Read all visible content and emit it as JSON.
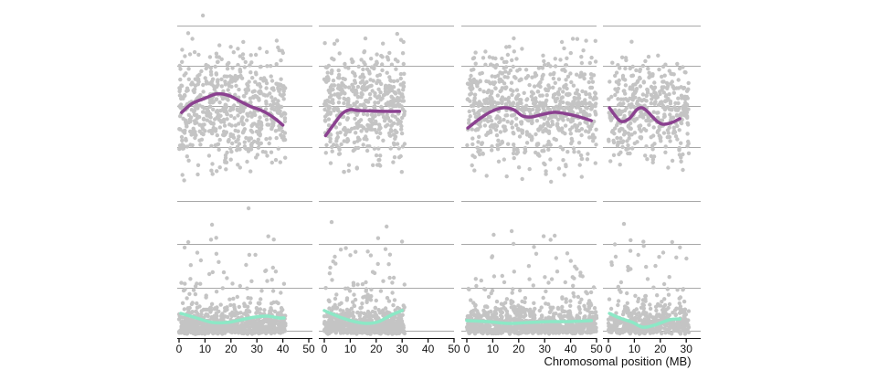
{
  "figure": {
    "background": "#ffffff"
  },
  "style": {
    "point_color": "#c4c4c4",
    "grid_color": "#a8a8a8",
    "axis_color": "#111111",
    "tick_label_color": "#111111",
    "axis_label_color": "#111111",
    "trend_color_top_row": "#8b4190",
    "trend_color_bottom_row": "#8ce8c6"
  },
  "chart_data": {
    "type": "scatter",
    "title": "",
    "xlabel": "Chromosomal position (MB)",
    "ylabel": "",
    "x_units": "MB",
    "y_axis_labels_visible": false,
    "y_units": "normalized panel fraction (0 = panel top, 1 = panel bottom); no y tick labels are visible in the image",
    "grid": "horizontal major gridlines only, 4 per panel row",
    "legend": "none",
    "facets": {
      "rows": 2,
      "cols": 4,
      "description": "2x4 grid of scatter panels; top row has purple loess trend, bottom row has mint-green loess trend; gray points"
    },
    "x_ticks_per_column": [
      [
        0,
        10,
        20,
        30,
        40,
        50
      ],
      [
        0,
        10,
        20,
        30,
        40,
        50
      ],
      [
        0,
        10,
        20,
        30,
        40,
        50
      ],
      [
        0,
        10,
        20,
        30
      ]
    ],
    "x_axis_range_per_column": [
      [
        0,
        52
      ],
      [
        0,
        52
      ],
      [
        0,
        52
      ],
      [
        0,
        36
      ]
    ],
    "panels": [
      {
        "row": 0,
        "col": 0,
        "x_data_max_mb": 41,
        "n_points": 620,
        "y_dist": {
          "kind": "normal",
          "mean": 0.55,
          "sd": 0.16,
          "min": 0.13,
          "max": 0.97
        },
        "trend": [
          [
            1,
            0.58
          ],
          [
            5,
            0.53
          ],
          [
            10,
            0.5
          ],
          [
            14,
            0.477
          ],
          [
            17,
            0.477
          ],
          [
            20,
            0.49
          ],
          [
            23,
            0.513
          ],
          [
            25,
            0.528
          ],
          [
            28,
            0.549
          ],
          [
            31,
            0.564
          ],
          [
            34,
            0.585
          ],
          [
            37,
            0.615
          ],
          [
            40,
            0.651
          ]
        ],
        "outliers": [
          [
            9.2,
            0.036
          ]
        ]
      },
      {
        "row": 0,
        "col": 1,
        "x_data_max_mb": 31,
        "n_points": 500,
        "y_dist": {
          "kind": "normal",
          "mean": 0.55,
          "sd": 0.16,
          "min": 0.13,
          "max": 0.97
        },
        "trend": [
          [
            0.5,
            0.71
          ],
          [
            4,
            0.64
          ],
          [
            7,
            0.585
          ],
          [
            10,
            0.564
          ],
          [
            13,
            0.569
          ],
          [
            18,
            0.572
          ],
          [
            24,
            0.574
          ],
          [
            29,
            0.574
          ]
        ],
        "outliers": []
      },
      {
        "row": 0,
        "col": 2,
        "x_data_max_mb": 50,
        "n_points": 720,
        "y_dist": {
          "kind": "normal",
          "mean": 0.55,
          "sd": 0.16,
          "min": 0.13,
          "max": 0.97
        },
        "trend": [
          [
            0.4,
            0.667
          ],
          [
            5,
            0.615
          ],
          [
            9.5,
            0.574
          ],
          [
            14,
            0.554
          ],
          [
            18,
            0.564
          ],
          [
            21.5,
            0.6
          ],
          [
            25,
            0.605
          ],
          [
            29.5,
            0.59
          ],
          [
            34,
            0.579
          ],
          [
            39,
            0.59
          ],
          [
            43.5,
            0.605
          ],
          [
            48,
            0.626
          ]
        ],
        "outliers": []
      },
      {
        "row": 0,
        "col": 3,
        "x_data_max_mb": 31,
        "n_points": 430,
        "y_dist": {
          "kind": "normal",
          "mean": 0.57,
          "sd": 0.14,
          "min": 0.16,
          "max": 0.97
        },
        "trend": [
          [
            0.4,
            0.554
          ],
          [
            3,
            0.605
          ],
          [
            5,
            0.631
          ],
          [
            8,
            0.615
          ],
          [
            11,
            0.564
          ],
          [
            13,
            0.554
          ],
          [
            15,
            0.574
          ],
          [
            18.5,
            0.626
          ],
          [
            21,
            0.646
          ],
          [
            24.5,
            0.636
          ],
          [
            27.5,
            0.615
          ]
        ],
        "outliers": []
      },
      {
        "row": 1,
        "col": 0,
        "x_data_max_mb": 41,
        "n_points": 780,
        "y_dist": {
          "kind": "baseline-skew",
          "baseline": 0.962,
          "sd1": 0.085,
          "sd2": 0.23,
          "p1": 0.84,
          "p2": 0.14,
          "far_min": 0.25,
          "far_max": 0.7,
          "min": 0.06
        },
        "trend": [
          [
            0.7,
            0.826
          ],
          [
            6.7,
            0.858
          ],
          [
            12.7,
            0.89
          ],
          [
            18.7,
            0.89
          ],
          [
            24,
            0.871
          ],
          [
            29,
            0.852
          ],
          [
            34,
            0.845
          ],
          [
            38.4,
            0.858
          ],
          [
            40.5,
            0.858
          ]
        ],
        "outliers": [
          [
            26.8,
            0.084
          ],
          [
            12.7,
            0.2
          ]
        ]
      },
      {
        "row": 1,
        "col": 1,
        "x_data_max_mb": 31,
        "n_points": 620,
        "y_dist": {
          "kind": "baseline-skew",
          "baseline": 0.962,
          "sd1": 0.085,
          "sd2": 0.23,
          "p1": 0.84,
          "p2": 0.14,
          "far_min": 0.25,
          "far_max": 0.7,
          "min": 0.06
        },
        "trend": [
          [
            0,
            0.806
          ],
          [
            6,
            0.852
          ],
          [
            11.6,
            0.884
          ],
          [
            16.5,
            0.897
          ],
          [
            21,
            0.884
          ],
          [
            25.7,
            0.839
          ],
          [
            30,
            0.806
          ]
        ],
        "outliers": [
          [
            2.8,
            0.181
          ],
          [
            24,
            0.213
          ]
        ]
      },
      {
        "row": 1,
        "col": 2,
        "x_data_max_mb": 50,
        "n_points": 880,
        "y_dist": {
          "kind": "baseline-skew",
          "baseline": 0.962,
          "sd1": 0.085,
          "sd2": 0.23,
          "p1": 0.84,
          "p2": 0.14,
          "far_min": 0.25,
          "far_max": 0.7,
          "min": 0.06
        },
        "trend": [
          [
            0,
            0.877
          ],
          [
            8,
            0.884
          ],
          [
            16,
            0.897
          ],
          [
            24,
            0.89
          ],
          [
            32,
            0.884
          ],
          [
            40,
            0.884
          ],
          [
            48,
            0.877
          ]
        ],
        "outliers": [
          [
            17.3,
            0.245
          ],
          [
            18,
            0.335
          ]
        ]
      },
      {
        "row": 1,
        "col": 3,
        "x_data_max_mb": 31,
        "n_points": 500,
        "y_dist": {
          "kind": "baseline-skew",
          "baseline": 0.962,
          "sd1": 0.085,
          "sd2": 0.23,
          "p1": 0.84,
          "p2": 0.14,
          "far_min": 0.25,
          "far_max": 0.7,
          "min": 0.06
        },
        "trend": [
          [
            0.4,
            0.826
          ],
          [
            4.3,
            0.858
          ],
          [
            9.3,
            0.89
          ],
          [
            13.2,
            0.923
          ],
          [
            17.5,
            0.91
          ],
          [
            23.6,
            0.871
          ],
          [
            27.5,
            0.865
          ]
        ],
        "outliers": [
          [
            6,
            0.194
          ]
        ]
      }
    ]
  }
}
